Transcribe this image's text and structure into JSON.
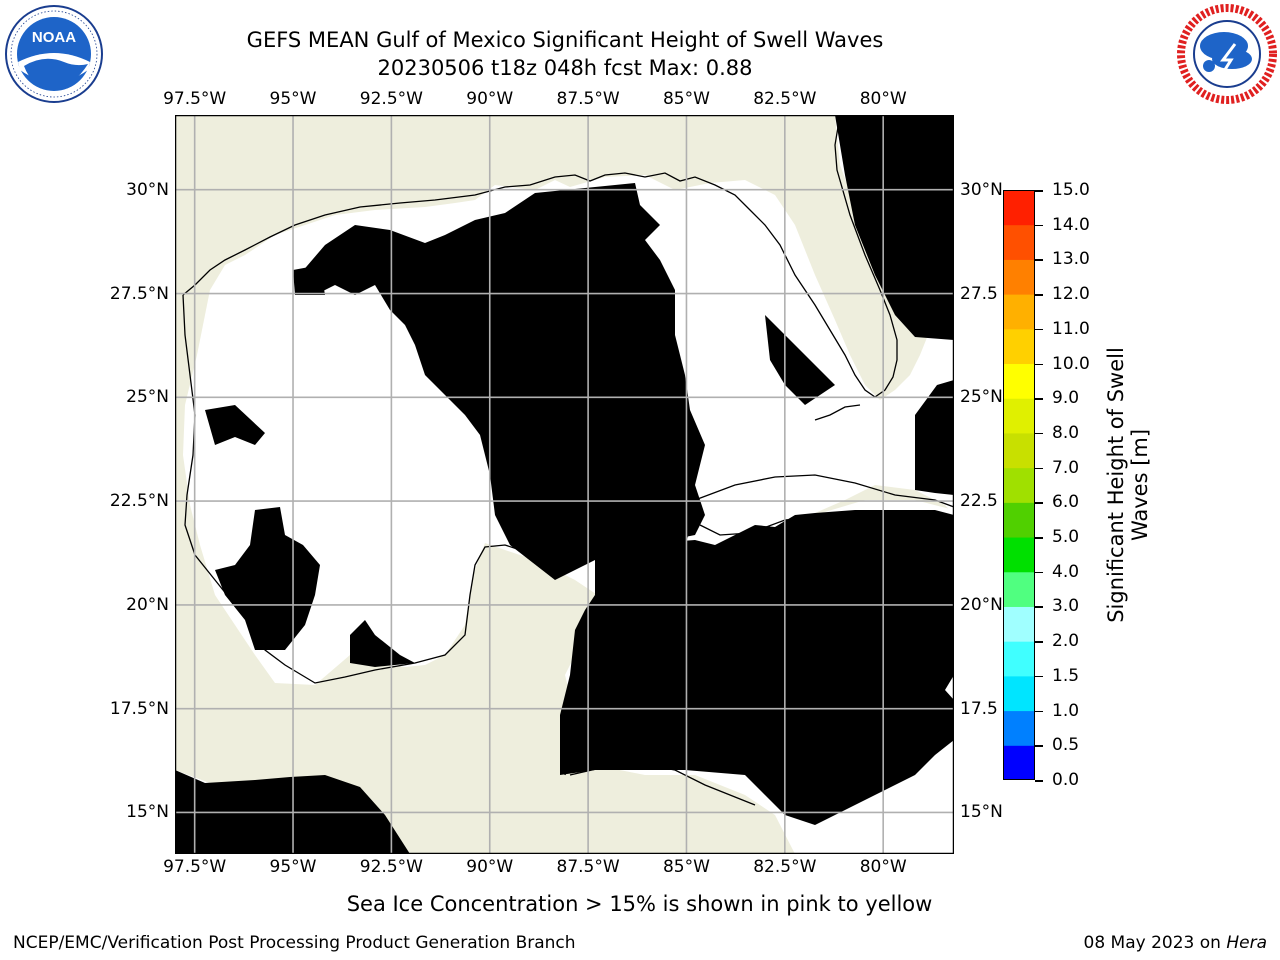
{
  "header": {
    "title_line1": "GEFS MEAN Gulf of Mexico Significant Height of Swell Waves",
    "title_line2": "20230506 t18z 048h fcst   Max: 0.88"
  },
  "logos": {
    "left": {
      "name": "NOAA",
      "ring_text": "NATIONAL OCEANIC AND ATMOSPHERIC ADMINISTRATION · U.S. DEPARTMENT OF COMMERCE"
    },
    "right": {
      "name": "NATIONAL WEATHER SERVICE"
    }
  },
  "map": {
    "lon_labels": [
      "97.5°W",
      "95°W",
      "92.5°W",
      "90°W",
      "87.5°W",
      "85°W",
      "82.5°W",
      "80°W"
    ],
    "lat_labels": [
      "30°N",
      "27.5°N",
      "25°N",
      "22.5°N",
      "20°N",
      "17.5°N",
      "15°N"
    ],
    "lat_labels_right": [
      "30°N",
      "27.5",
      "25°N",
      "22.5",
      "20°N",
      "17.5",
      "15°N"
    ],
    "extent": {
      "lon_min": -98,
      "lon_max": -78.2,
      "lat_min": 14,
      "lat_max": 31.8
    },
    "colors": {
      "land": "#eeeedd",
      "no_data": "#ffffff",
      "swell_0_0.5": "#0000ff",
      "swell_0.5_1.0": "#0080ff",
      "grid": "#b0b0b0"
    }
  },
  "colorbar": {
    "ticks": [
      "15.0",
      "14.0",
      "13.0",
      "12.0",
      "11.0",
      "10.0",
      "9.0",
      "8.0",
      "7.0",
      "6.0",
      "5.0",
      "4.0",
      "3.0",
      "2.0",
      "1.5",
      "1.0",
      "0.5",
      "0.0"
    ],
    "levels": [
      0,
      0.5,
      1.0,
      1.5,
      2.0,
      3.0,
      4.0,
      5.0,
      6.0,
      7.0,
      8.0,
      9.0,
      10.0,
      11.0,
      12.0,
      13.0,
      14.0,
      15.0
    ],
    "colors": [
      "#0000ff",
      "#0080ff",
      "#00e5ff",
      "#40ffff",
      "#a0ffff",
      "#50ff80",
      "#00e000",
      "#50d000",
      "#a0e000",
      "#c8e000",
      "#e0f000",
      "#ffff00",
      "#ffd000",
      "#ffb000",
      "#ff8000",
      "#ff5000",
      "#ff2000"
    ],
    "label": "Significant Height of Swell Waves [m]"
  },
  "caption": "Sea Ice Concentration > 15% is shown in pink to yellow",
  "footer": {
    "left": "NCEP/EMC/Verification Post Processing Product Generation Branch",
    "date": "08 May 2023 on",
    "machine": "Hera"
  }
}
